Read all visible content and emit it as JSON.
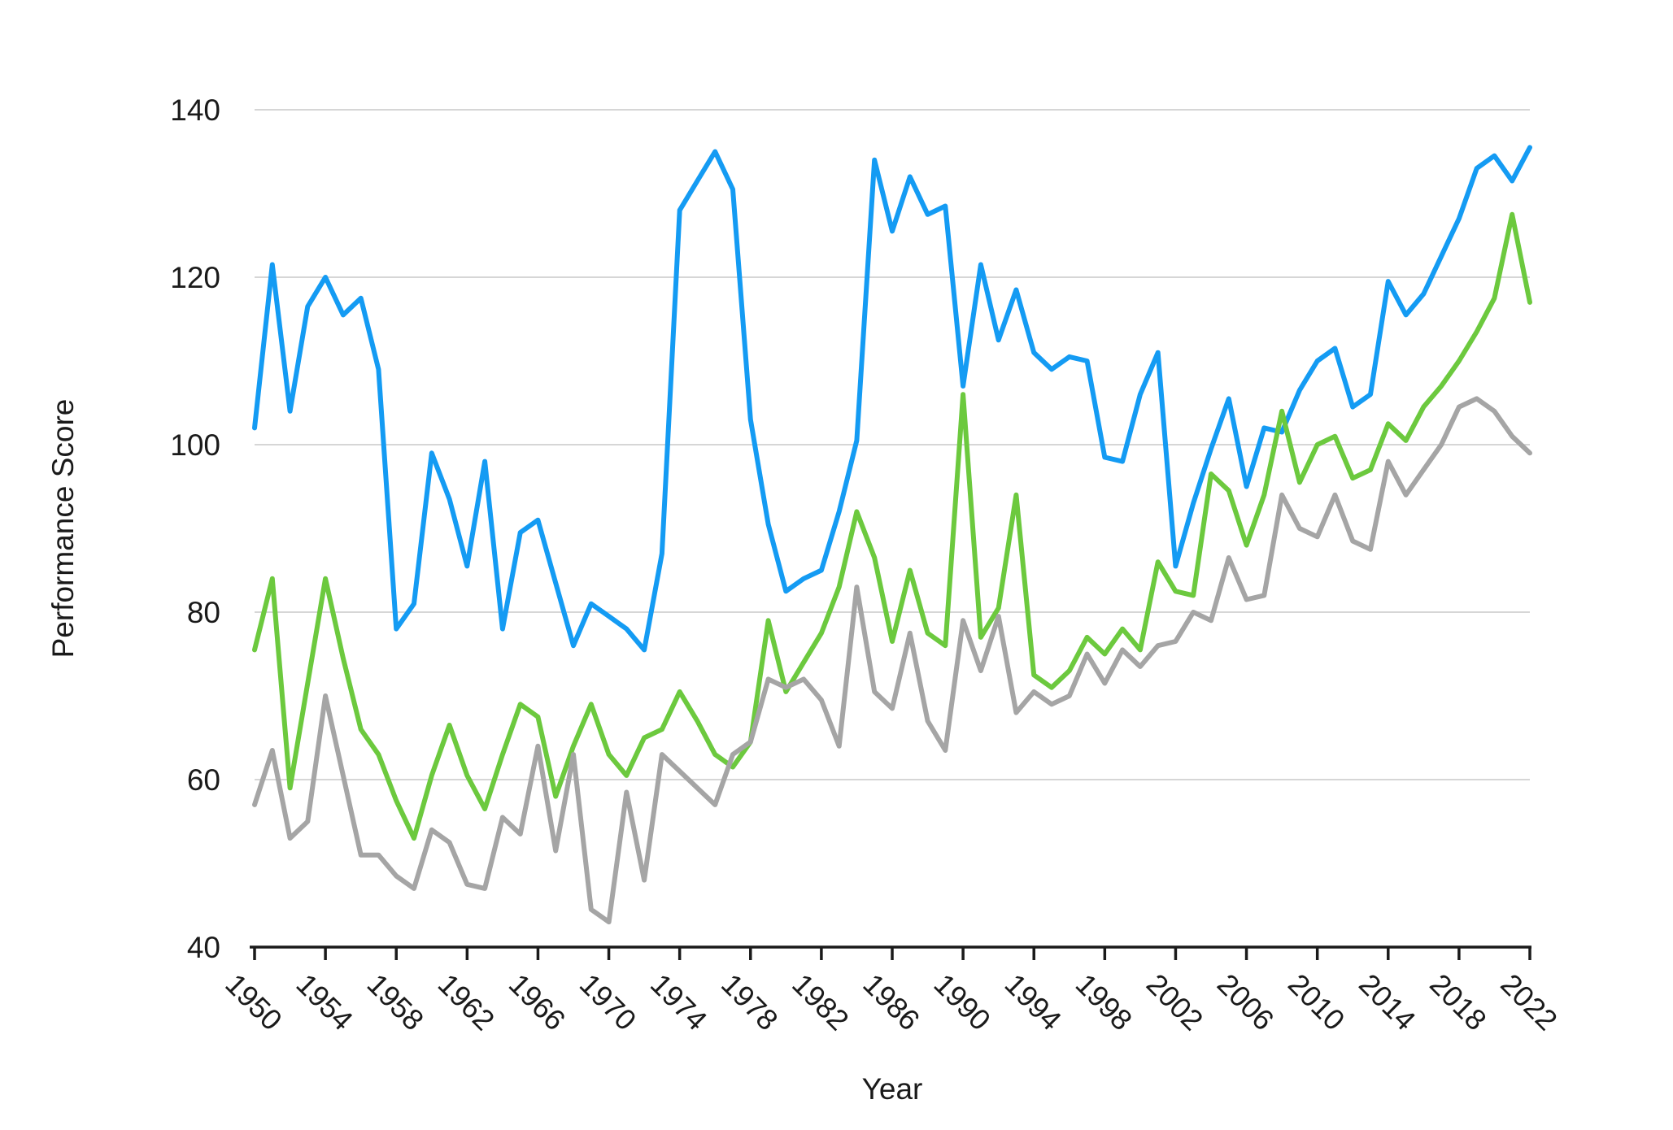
{
  "chart_data": {
    "type": "line",
    "title": "",
    "xlabel": "Year",
    "ylabel": "Performance Score",
    "grid": "horizontal",
    "legend_position": "none",
    "x_range": [
      1950,
      2022
    ],
    "x_tick_step": 4,
    "x_tick_labels": [
      "1950",
      "1954",
      "1958",
      "1962",
      "1966",
      "1970",
      "1974",
      "1978",
      "1982",
      "1986",
      "1990",
      "1994",
      "1998",
      "2002",
      "2006",
      "2010",
      "2014",
      "2018",
      "2022"
    ],
    "ylim": [
      40,
      140
    ],
    "y_ticks": [
      40,
      60,
      80,
      100,
      120,
      140
    ],
    "x": [
      1950,
      1951,
      1952,
      1953,
      1954,
      1955,
      1956,
      1957,
      1958,
      1959,
      1960,
      1961,
      1962,
      1963,
      1964,
      1965,
      1966,
      1967,
      1968,
      1969,
      1970,
      1971,
      1972,
      1973,
      1974,
      1975,
      1976,
      1977,
      1978,
      1979,
      1980,
      1981,
      1982,
      1983,
      1984,
      1985,
      1986,
      1987,
      1988,
      1989,
      1990,
      1991,
      1992,
      1993,
      1994,
      1995,
      1996,
      1997,
      1998,
      1999,
      2000,
      2001,
      2002,
      2003,
      2004,
      2005,
      2006,
      2007,
      2008,
      2009,
      2010,
      2011,
      2012,
      2013,
      2014,
      2015,
      2016,
      2017,
      2018,
      2019,
      2020,
      2021,
      2022
    ],
    "series": [
      {
        "name": "series-blue",
        "color": "#149BF3",
        "values": [
          102,
          121.5,
          104,
          116.5,
          120,
          115.5,
          117.5,
          109,
          78,
          81,
          99,
          93.5,
          85.5,
          98,
          78,
          89.5,
          91,
          83.5,
          76,
          81,
          79.5,
          78,
          75.5,
          87,
          128,
          131.5,
          135,
          130.5,
          103,
          90.5,
          82.5,
          84,
          85,
          92,
          100.5,
          134,
          125.5,
          132,
          127.5,
          128.5,
          107,
          121.5,
          112.5,
          118.5,
          111,
          109,
          110.5,
          110,
          98.5,
          98,
          106,
          111,
          85.5,
          93,
          99.5,
          105.5,
          95,
          102,
          101.5,
          106.5,
          110,
          111.5,
          104.5,
          106,
          119.5,
          115.5,
          118,
          122.5,
          127,
          133,
          134.5,
          131.5,
          135.5
        ]
      },
      {
        "name": "series-green",
        "color": "#6CC93E",
        "values": [
          75.5,
          84,
          59,
          71.5,
          84,
          74.5,
          66,
          63,
          57.5,
          53,
          60.5,
          66.5,
          60.5,
          56.5,
          63,
          69,
          67.5,
          58,
          64,
          69,
          63,
          60.5,
          65,
          66,
          70.5,
          67,
          63,
          61.5,
          64.5,
          79,
          70.5,
          74,
          77.5,
          83,
          92,
          86.5,
          76.5,
          85,
          77.5,
          76,
          106,
          77,
          80.5,
          94,
          72.5,
          71,
          73,
          77,
          75,
          78,
          75.5,
          86,
          82.5,
          82,
          96.5,
          94.5,
          88,
          94,
          104,
          95.5,
          100,
          101,
          96,
          97,
          102.5,
          100.5,
          104.5,
          107,
          110,
          113.5,
          117.5,
          127.5,
          117
        ]
      },
      {
        "name": "series-gray",
        "color": "#A5A5A5",
        "values": [
          57,
          63.5,
          53,
          55,
          70,
          60.5,
          51,
          51,
          48.5,
          47,
          54,
          52.5,
          47.5,
          47,
          55.5,
          53.5,
          64,
          51.5,
          63,
          44.5,
          43,
          58.5,
          48,
          63,
          61,
          59,
          57,
          63,
          64.5,
          72,
          71,
          72,
          69.5,
          64,
          83,
          70.5,
          68.5,
          77.5,
          67,
          63.5,
          79,
          73,
          79.5,
          68,
          70.5,
          69,
          70,
          75,
          71.5,
          75.5,
          73.5,
          76,
          76.5,
          80,
          79,
          86.5,
          81.5,
          82,
          94,
          90,
          89,
          94,
          88.5,
          87.5,
          98,
          94,
          97,
          100,
          104.5,
          105.5,
          104,
          101,
          99
        ]
      }
    ],
    "colors": {
      "grid_line": "#d6d6d6",
      "axis_line": "#1a1a1a",
      "tick_mark": "#1a1a1a",
      "label_text": "#1a1a1a"
    }
  }
}
